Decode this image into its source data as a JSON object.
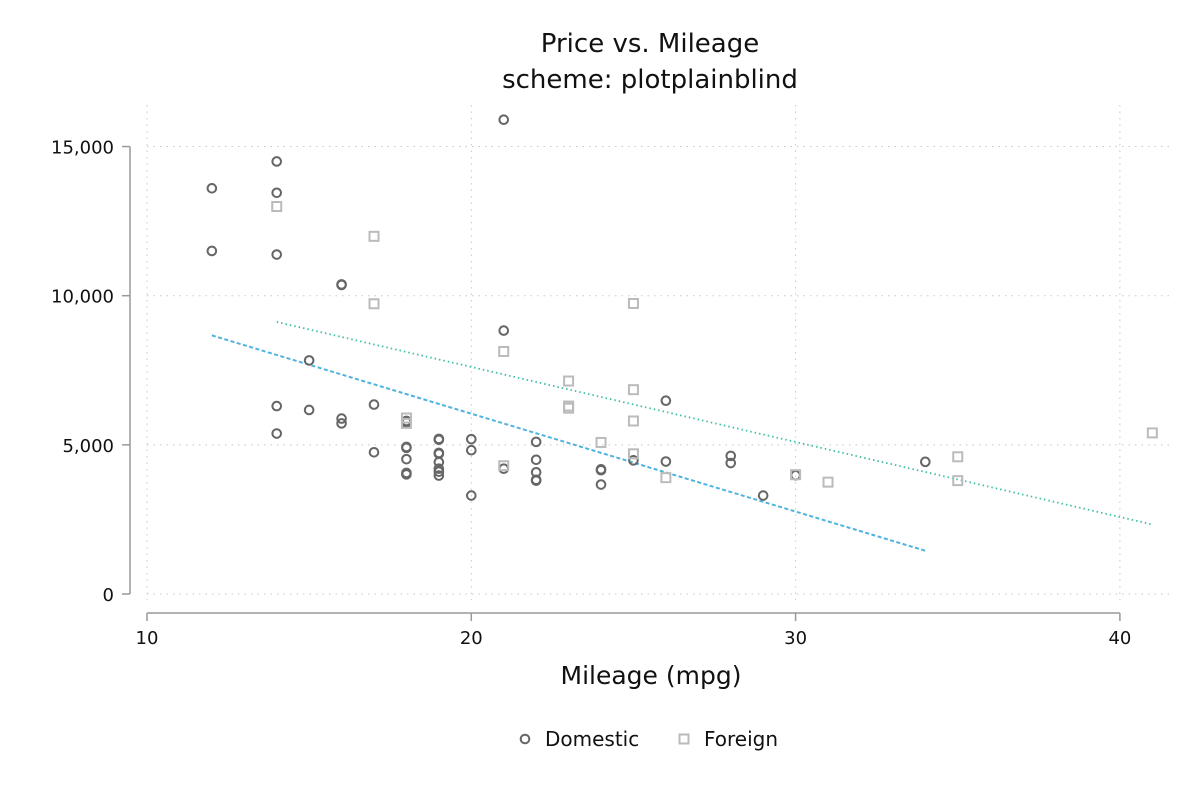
{
  "chart_data": {
    "type": "scatter",
    "title": "Price vs. Mileage",
    "subtitle": "scheme: plotplainblind",
    "xlabel": "Mileage (mpg)",
    "ylabel": "",
    "xlim": [
      10,
      41.5
    ],
    "ylim": [
      -400,
      16300
    ],
    "xticks": [
      10,
      20,
      30,
      40
    ],
    "xtick_labels": [
      "10",
      "20",
      "30",
      "40"
    ],
    "yticks": [
      0,
      5000,
      10000,
      15000
    ],
    "ytick_labels": [
      "0",
      "5,000",
      "10,000",
      "15,000"
    ],
    "grid": true,
    "legend_position": "bottom",
    "series": [
      {
        "name": "Domestic",
        "marker": "circle",
        "color": "#666666",
        "points": [
          [
            12,
            13600
          ],
          [
            12,
            11500
          ],
          [
            14,
            14500
          ],
          [
            14,
            13450
          ],
          [
            14,
            11380
          ],
          [
            14,
            6300
          ],
          [
            14,
            5380
          ],
          [
            15,
            7830
          ],
          [
            15,
            6170
          ],
          [
            16,
            10380
          ],
          [
            16,
            10360
          ],
          [
            16,
            5880
          ],
          [
            16,
            5720
          ],
          [
            17,
            6350
          ],
          [
            17,
            4750
          ],
          [
            18,
            5800
          ],
          [
            18,
            5750
          ],
          [
            18,
            4930
          ],
          [
            18,
            4900
          ],
          [
            18,
            4520
          ],
          [
            18,
            4060
          ],
          [
            18,
            4010
          ],
          [
            19,
            5200
          ],
          [
            19,
            5170
          ],
          [
            19,
            4730
          ],
          [
            19,
            4700
          ],
          [
            19,
            4420
          ],
          [
            19,
            4200
          ],
          [
            19,
            4100
          ],
          [
            19,
            3970
          ],
          [
            20,
            5190
          ],
          [
            20,
            4820
          ],
          [
            20,
            3300
          ],
          [
            21,
            15900
          ],
          [
            21,
            8830
          ],
          [
            21,
            4200
          ],
          [
            22,
            5100
          ],
          [
            22,
            4500
          ],
          [
            22,
            4080
          ],
          [
            22,
            3830
          ],
          [
            22,
            3800
          ],
          [
            24,
            4180
          ],
          [
            24,
            4150
          ],
          [
            24,
            3670
          ],
          [
            25,
            4480
          ],
          [
            26,
            6480
          ],
          [
            26,
            4440
          ],
          [
            28,
            4630
          ],
          [
            28,
            4390
          ],
          [
            29,
            3300
          ],
          [
            30,
            3980
          ],
          [
            34,
            4430
          ]
        ]
      },
      {
        "name": "Foreign",
        "marker": "square",
        "color": "#bbbbbb",
        "points": [
          [
            14,
            12990
          ],
          [
            17,
            11990
          ],
          [
            17,
            9730
          ],
          [
            18,
            5900
          ],
          [
            18,
            5720
          ],
          [
            21,
            8130
          ],
          [
            21,
            4300
          ],
          [
            23,
            7140
          ],
          [
            23,
            6300
          ],
          [
            23,
            6230
          ],
          [
            24,
            5080
          ],
          [
            25,
            9740
          ],
          [
            25,
            6850
          ],
          [
            25,
            5800
          ],
          [
            25,
            4700
          ],
          [
            26,
            3900
          ],
          [
            30,
            4000
          ],
          [
            31,
            3750
          ],
          [
            35,
            4600
          ],
          [
            35,
            3800
          ],
          [
            41,
            5400
          ]
        ]
      }
    ],
    "fit_lines": [
      {
        "color": "#4fb3e0",
        "style": "dashed",
        "x": [
          12,
          34
        ],
        "y": [
          8670,
          1450
        ]
      },
      {
        "color": "#3dbfa6",
        "style": "dotted",
        "x": [
          14,
          41
        ],
        "y": [
          9120,
          2330
        ]
      }
    ]
  }
}
